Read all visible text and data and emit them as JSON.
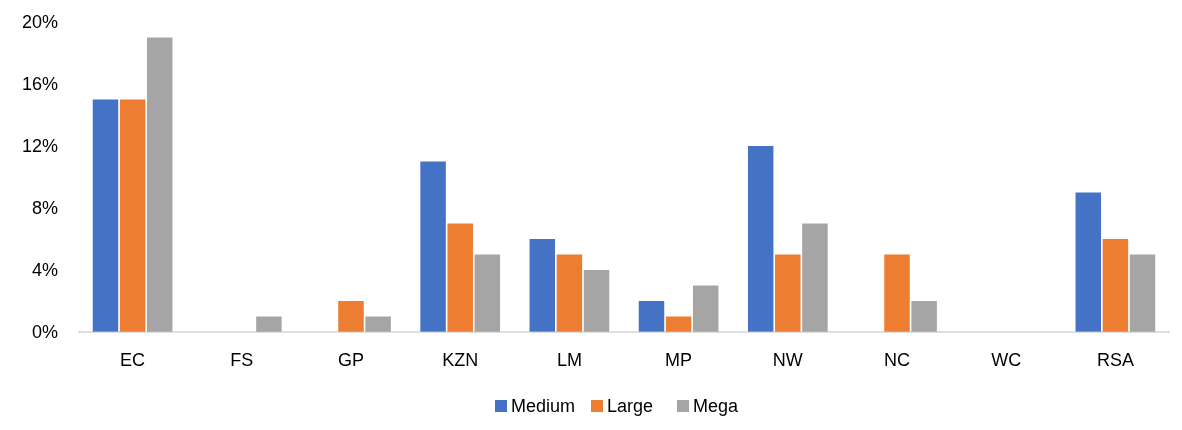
{
  "chart_data": {
    "type": "bar",
    "categories": [
      "EC",
      "FS",
      "GP",
      "KZN",
      "LM",
      "MP",
      "NW",
      "NC",
      "WC",
      "RSA"
    ],
    "series": [
      {
        "name": "Medium",
        "color": "#4472c4",
        "values": [
          15,
          0,
          0,
          11,
          6,
          2,
          12,
          0,
          0,
          9
        ]
      },
      {
        "name": "Large",
        "color": "#ed7d31",
        "values": [
          15,
          0,
          2,
          7,
          5,
          1,
          5,
          5,
          0,
          6
        ]
      },
      {
        "name": "Mega",
        "color": "#a5a5a5",
        "values": [
          19,
          1,
          1,
          5,
          4,
          3,
          7,
          2,
          0,
          5
        ]
      }
    ],
    "ylim": [
      0,
      20
    ],
    "yticks": [
      {
        "value": 0,
        "label": "0%"
      },
      {
        "value": 4,
        "label": "4%"
      },
      {
        "value": 8,
        "label": "8%"
      },
      {
        "value": 12,
        "label": "12%"
      },
      {
        "value": 16,
        "label": "16%"
      },
      {
        "value": 20,
        "label": "20%"
      }
    ],
    "grid": false,
    "legend": "bottom"
  }
}
